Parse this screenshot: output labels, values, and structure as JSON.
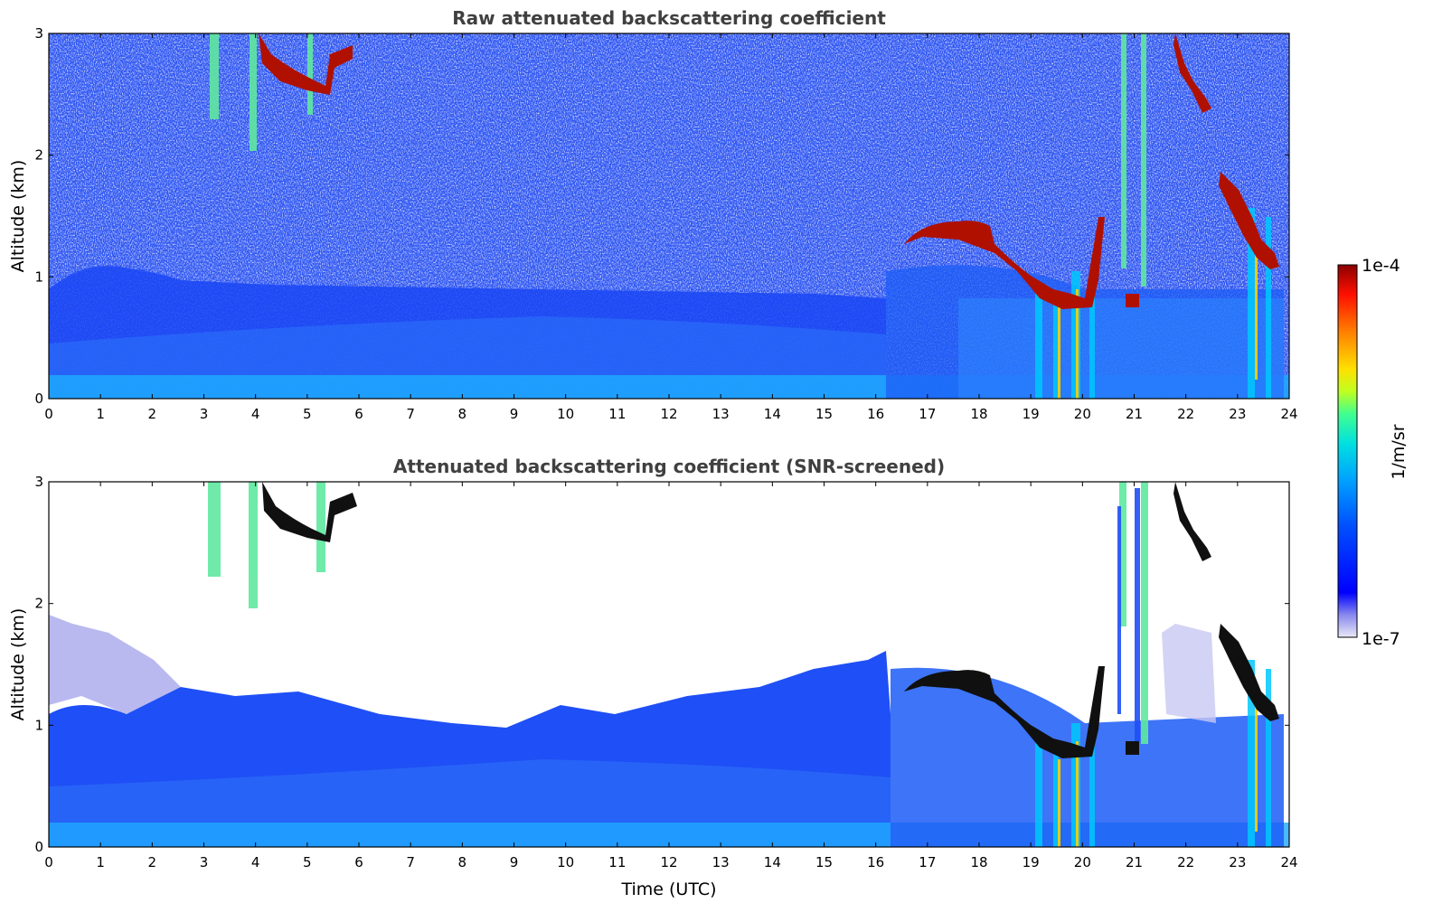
{
  "chart_data": [
    {
      "type": "heatmap",
      "title": "Raw attenuated backscattering coefficient",
      "xlabel": "",
      "ylabel": "Altitude (km)",
      "xlim": [
        0,
        24
      ],
      "ylim": [
        0,
        3
      ],
      "x_ticks": [
        "0",
        "1",
        "2",
        "3",
        "4",
        "5",
        "6",
        "7",
        "8",
        "9",
        "10",
        "11",
        "12",
        "13",
        "14",
        "15",
        "16",
        "17",
        "18",
        "19",
        "20",
        "21",
        "22",
        "23",
        "24"
      ],
      "y_ticks": [
        "0",
        "1",
        "2",
        "3"
      ],
      "screened": false,
      "features": [
        {
          "kind": "boundary_layer",
          "x": [
            0,
            16.3
          ],
          "y": [
            0,
            1.1
          ]
        },
        {
          "kind": "cloud_layer",
          "x": [
            16.5,
            18.0
          ],
          "y": [
            1.2,
            1.5
          ],
          "level": "1e-4"
        },
        {
          "kind": "cloud_layer",
          "x": [
            18.0,
            20.5
          ],
          "y": [
            0.7,
            1.3
          ],
          "level": "1e-4"
        },
        {
          "kind": "cloud_layer",
          "x": [
            20.7,
            21.0
          ],
          "y": [
            0.7,
            0.85
          ],
          "level": "1e-4"
        },
        {
          "kind": "cloud_layer",
          "x": [
            22.7,
            23.8
          ],
          "y": [
            1.0,
            1.8
          ],
          "level": "1e-4"
        },
        {
          "kind": "cloud_layer",
          "x": [
            4.0,
            5.8
          ],
          "y": [
            2.5,
            3.0
          ],
          "level": "1e-4"
        },
        {
          "kind": "cloud_layer",
          "x": [
            21.8,
            22.5
          ],
          "y": [
            2.3,
            3.0
          ],
          "level": "1e-4"
        },
        {
          "kind": "precipitation",
          "x": [
            19.0,
            20.3
          ],
          "y": [
            0,
            1.0
          ]
        },
        {
          "kind": "precipitation",
          "x": [
            23.0,
            23.8
          ],
          "y": [
            0,
            1.5
          ]
        }
      ]
    },
    {
      "type": "heatmap",
      "title": "Attenuated backscattering coefficient (SNR-screened)",
      "xlabel": "Time (UTC)",
      "ylabel": "Altitude (km)",
      "xlim": [
        0,
        24
      ],
      "ylim": [
        0,
        3
      ],
      "x_ticks": [
        "0",
        "1",
        "2",
        "3",
        "4",
        "5",
        "6",
        "7",
        "8",
        "9",
        "10",
        "11",
        "12",
        "13",
        "14",
        "15",
        "16",
        "17",
        "18",
        "19",
        "20",
        "21",
        "22",
        "23",
        "24"
      ],
      "y_ticks": [
        "0",
        "1",
        "2",
        "3"
      ],
      "screened": true,
      "features": [
        {
          "kind": "boundary_layer",
          "x": [
            0,
            16.3
          ],
          "y": [
            0,
            1.3
          ]
        },
        {
          "kind": "cloud_layer",
          "x": [
            16.5,
            18.0
          ],
          "y": [
            1.2,
            1.5
          ],
          "level": "1e-4"
        },
        {
          "kind": "cloud_layer",
          "x": [
            18.0,
            20.5
          ],
          "y": [
            0.7,
            1.3
          ],
          "level": "1e-4"
        },
        {
          "kind": "cloud_layer",
          "x": [
            22.7,
            23.8
          ],
          "y": [
            1.0,
            1.8
          ],
          "level": "1e-4"
        },
        {
          "kind": "cloud_layer",
          "x": [
            4.0,
            6.0
          ],
          "y": [
            2.5,
            3.0
          ],
          "level": "1e-4"
        },
        {
          "kind": "cloud_layer",
          "x": [
            21.8,
            22.5
          ],
          "y": [
            2.3,
            3.0
          ],
          "level": "1e-4"
        }
      ]
    }
  ],
  "colorbar": {
    "min_label": "1e-7",
    "max_label": "1e-4",
    "unit": "1/m/sr",
    "colormap": [
      "#e9e9f6",
      "#8888ee",
      "#0000ff",
      "#0050ff",
      "#00a0ff",
      "#00e0e0",
      "#40ff90",
      "#c0ff20",
      "#ffe000",
      "#ff8000",
      "#ff1000",
      "#8c0000"
    ]
  }
}
